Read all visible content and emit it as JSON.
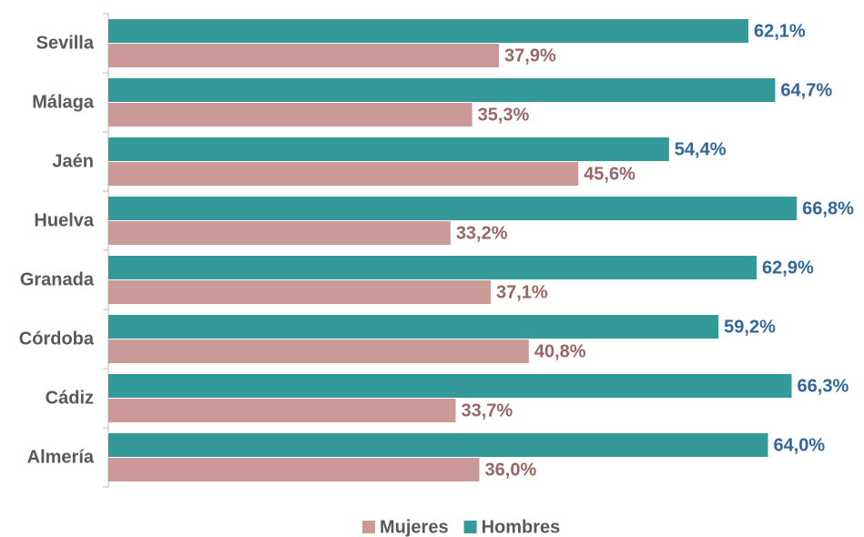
{
  "chart_data": {
    "type": "bar",
    "orientation": "horizontal",
    "categories": [
      "Sevilla",
      "Málaga",
      "Jaén",
      "Huelva",
      "Granada",
      "Córdoba",
      "Cádiz",
      "Almería"
    ],
    "series": [
      {
        "name": "Mujeres",
        "color": "#cc9999",
        "label_color": "#996666",
        "values": [
          37.9,
          35.3,
          45.6,
          33.2,
          37.1,
          40.8,
          33.7,
          36.0
        ],
        "value_labels": [
          "37,9%",
          "35,3%",
          "45,6%",
          "33,2%",
          "37,1%",
          "40,8%",
          "33,7%",
          "36,0%"
        ]
      },
      {
        "name": "Hombres",
        "color": "#339999",
        "label_color": "#336699",
        "values": [
          62.1,
          64.7,
          54.4,
          66.8,
          62.9,
          59.2,
          66.3,
          64.0
        ],
        "value_labels": [
          "62,1%",
          "64,7%",
          "54,4%",
          "66,8%",
          "62,9%",
          "59,2%",
          "66,3%",
          "64,0%"
        ]
      }
    ],
    "legend": "bottom"
  }
}
